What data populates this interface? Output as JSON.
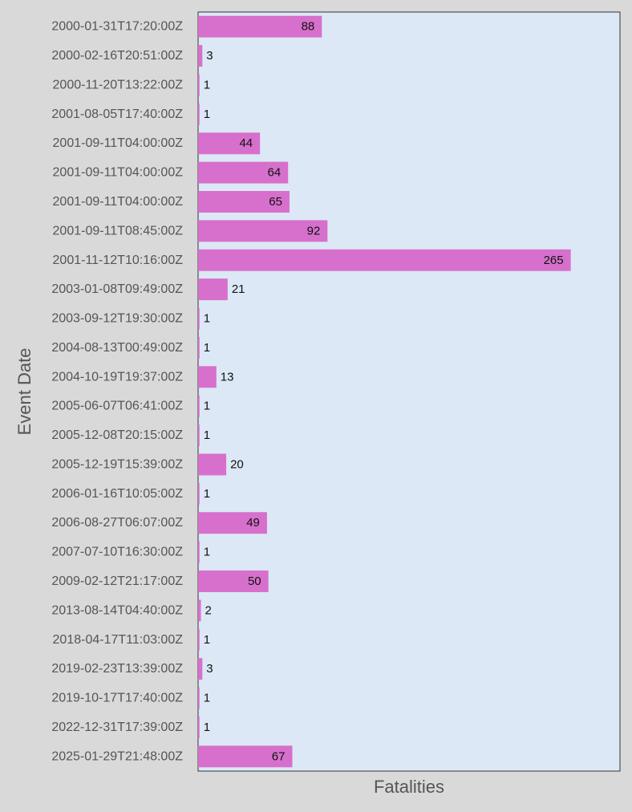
{
  "chart_data": {
    "type": "bar",
    "orientation": "horizontal",
    "title": "",
    "xlabel": "Fatalities",
    "ylabel": "Event Date",
    "categories": [
      "2000-01-31T17:20:00Z",
      "2000-02-16T20:51:00Z",
      "2000-11-20T13:22:00Z",
      "2001-08-05T17:40:00Z",
      "2001-09-11T04:00:00Z",
      "2001-09-11T04:00:00Z",
      "2001-09-11T04:00:00Z",
      "2001-09-11T08:45:00Z",
      "2001-11-12T10:16:00Z",
      "2003-01-08T09:49:00Z",
      "2003-09-12T19:30:00Z",
      "2004-08-13T00:49:00Z",
      "2004-10-19T19:37:00Z",
      "2005-06-07T06:41:00Z",
      "2005-12-08T20:15:00Z",
      "2005-12-19T15:39:00Z",
      "2006-01-16T10:05:00Z",
      "2006-08-27T06:07:00Z",
      "2007-07-10T16:30:00Z",
      "2009-02-12T21:17:00Z",
      "2013-08-14T04:40:00Z",
      "2018-04-17T11:03:00Z",
      "2019-02-23T13:39:00Z",
      "2019-10-17T17:40:00Z",
      "2022-12-31T17:39:00Z",
      "2025-01-29T21:48:00Z"
    ],
    "values": [
      88,
      3,
      1,
      1,
      44,
      64,
      65,
      92,
      265,
      21,
      1,
      1,
      13,
      1,
      1,
      20,
      1,
      49,
      1,
      50,
      2,
      1,
      3,
      1,
      1,
      67
    ],
    "xlim": [
      0,
      300
    ],
    "grid": false,
    "legend": "none",
    "data_labels": true,
    "colors": {
      "bar": "#d670cc",
      "plot_background": "#dce8f5",
      "page_background": "#d9d9d9",
      "plot_border": "#333333"
    }
  }
}
